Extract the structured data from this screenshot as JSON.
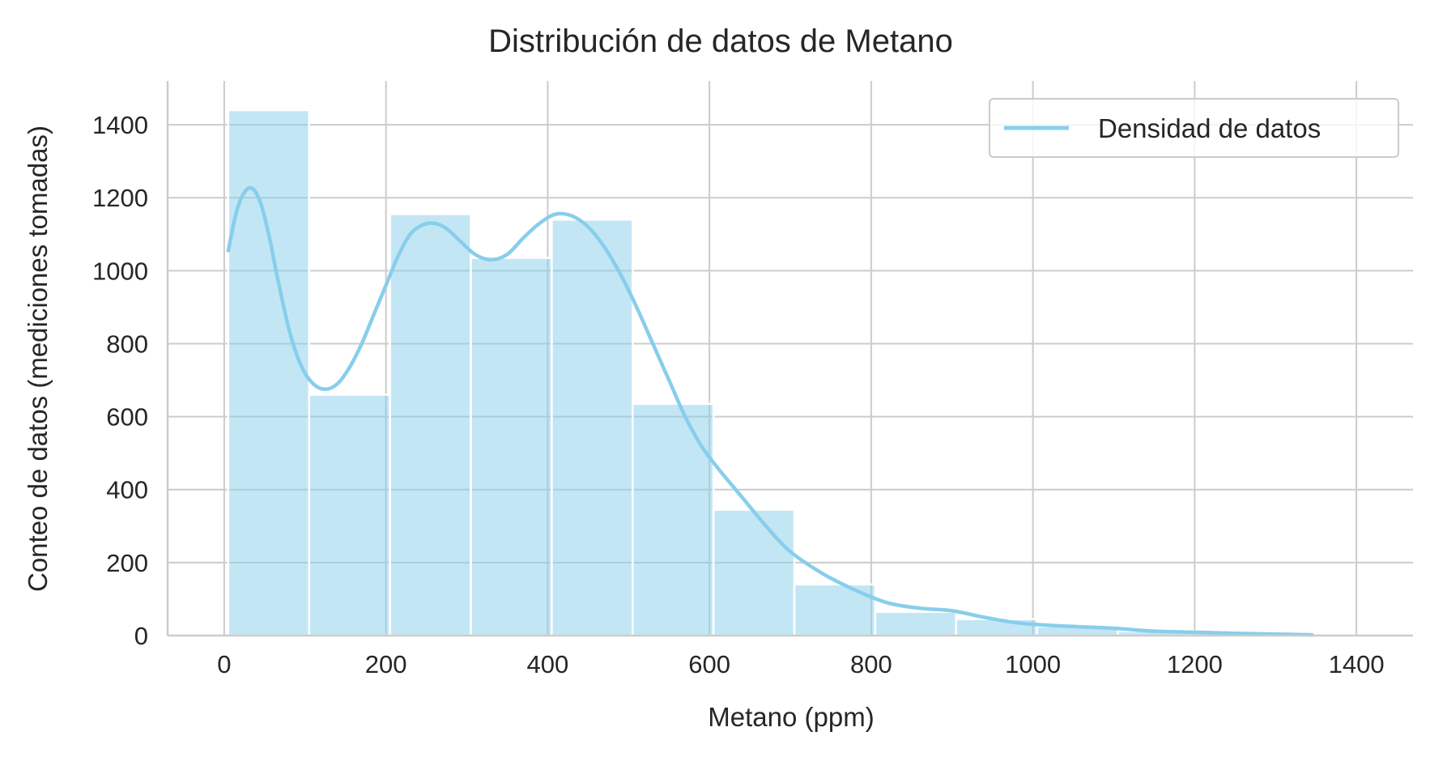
{
  "chart_data": {
    "type": "bar",
    "title": "Distribución de datos de Metano",
    "xlabel": "Metano (ppm)",
    "ylabel": "Conteo de datos (mediciones tomadas)",
    "xlim": [
      -70,
      1470
    ],
    "ylim": [
      0,
      1520
    ],
    "xticks": [
      0,
      200,
      400,
      600,
      800,
      1000,
      1200,
      1400
    ],
    "yticks": [
      0,
      200,
      400,
      600,
      800,
      1000,
      1200,
      1400
    ],
    "grid": true,
    "legend": {
      "placement": "top-right",
      "entries": [
        "Densidad de datos"
      ]
    },
    "colors": {
      "bar": "#87ceeb",
      "bar_opacity": 0.5,
      "line": "#87ceeb",
      "grid": "#cccccc",
      "text": "#262626"
    },
    "bins": [
      {
        "x0": 5,
        "x1": 105,
        "count": 1440
      },
      {
        "x0": 105,
        "x1": 205,
        "count": 660
      },
      {
        "x0": 205,
        "x1": 305,
        "count": 1155
      },
      {
        "x0": 305,
        "x1": 405,
        "count": 1035
      },
      {
        "x0": 405,
        "x1": 505,
        "count": 1140
      },
      {
        "x0": 505,
        "x1": 605,
        "count": 635
      },
      {
        "x0": 605,
        "x1": 705,
        "count": 345
      },
      {
        "x0": 705,
        "x1": 805,
        "count": 140
      },
      {
        "x0": 805,
        "x1": 905,
        "count": 65
      },
      {
        "x0": 905,
        "x1": 1005,
        "count": 45
      },
      {
        "x0": 1005,
        "x1": 1105,
        "count": 25
      },
      {
        "x0": 1105,
        "x1": 1205,
        "count": 12
      },
      {
        "x0": 1205,
        "x1": 1305,
        "count": 8
      },
      {
        "x0": 1305,
        "x1": 1345,
        "count": 4
      }
    ],
    "series": [
      {
        "name": "Densidad de datos",
        "type": "line",
        "x": [
          5,
          15,
          25,
          35,
          45,
          55,
          65,
          80,
          95,
          110,
          125,
          140,
          155,
          170,
          185,
          200,
          215,
          230,
          245,
          260,
          275,
          290,
          310,
          330,
          350,
          370,
          390,
          410,
          430,
          450,
          470,
          490,
          510,
          530,
          550,
          570,
          590,
          610,
          640,
          670,
          700,
          740,
          780,
          820,
          860,
          900,
          940,
          980,
          1020,
          1060,
          1100,
          1150,
          1200,
          1250,
          1300,
          1345
        ],
        "y": [
          1055,
          1160,
          1215,
          1225,
          1185,
          1100,
          990,
          840,
          740,
          690,
          675,
          690,
          735,
          800,
          880,
          960,
          1040,
          1100,
          1125,
          1130,
          1115,
          1085,
          1045,
          1030,
          1045,
          1090,
          1130,
          1155,
          1150,
          1120,
          1065,
          990,
          900,
          800,
          700,
          600,
          520,
          460,
          380,
          300,
          230,
          170,
          125,
          90,
          75,
          68,
          50,
          35,
          28,
          24,
          20,
          12,
          9,
          6,
          4,
          2
        ]
      }
    ]
  }
}
